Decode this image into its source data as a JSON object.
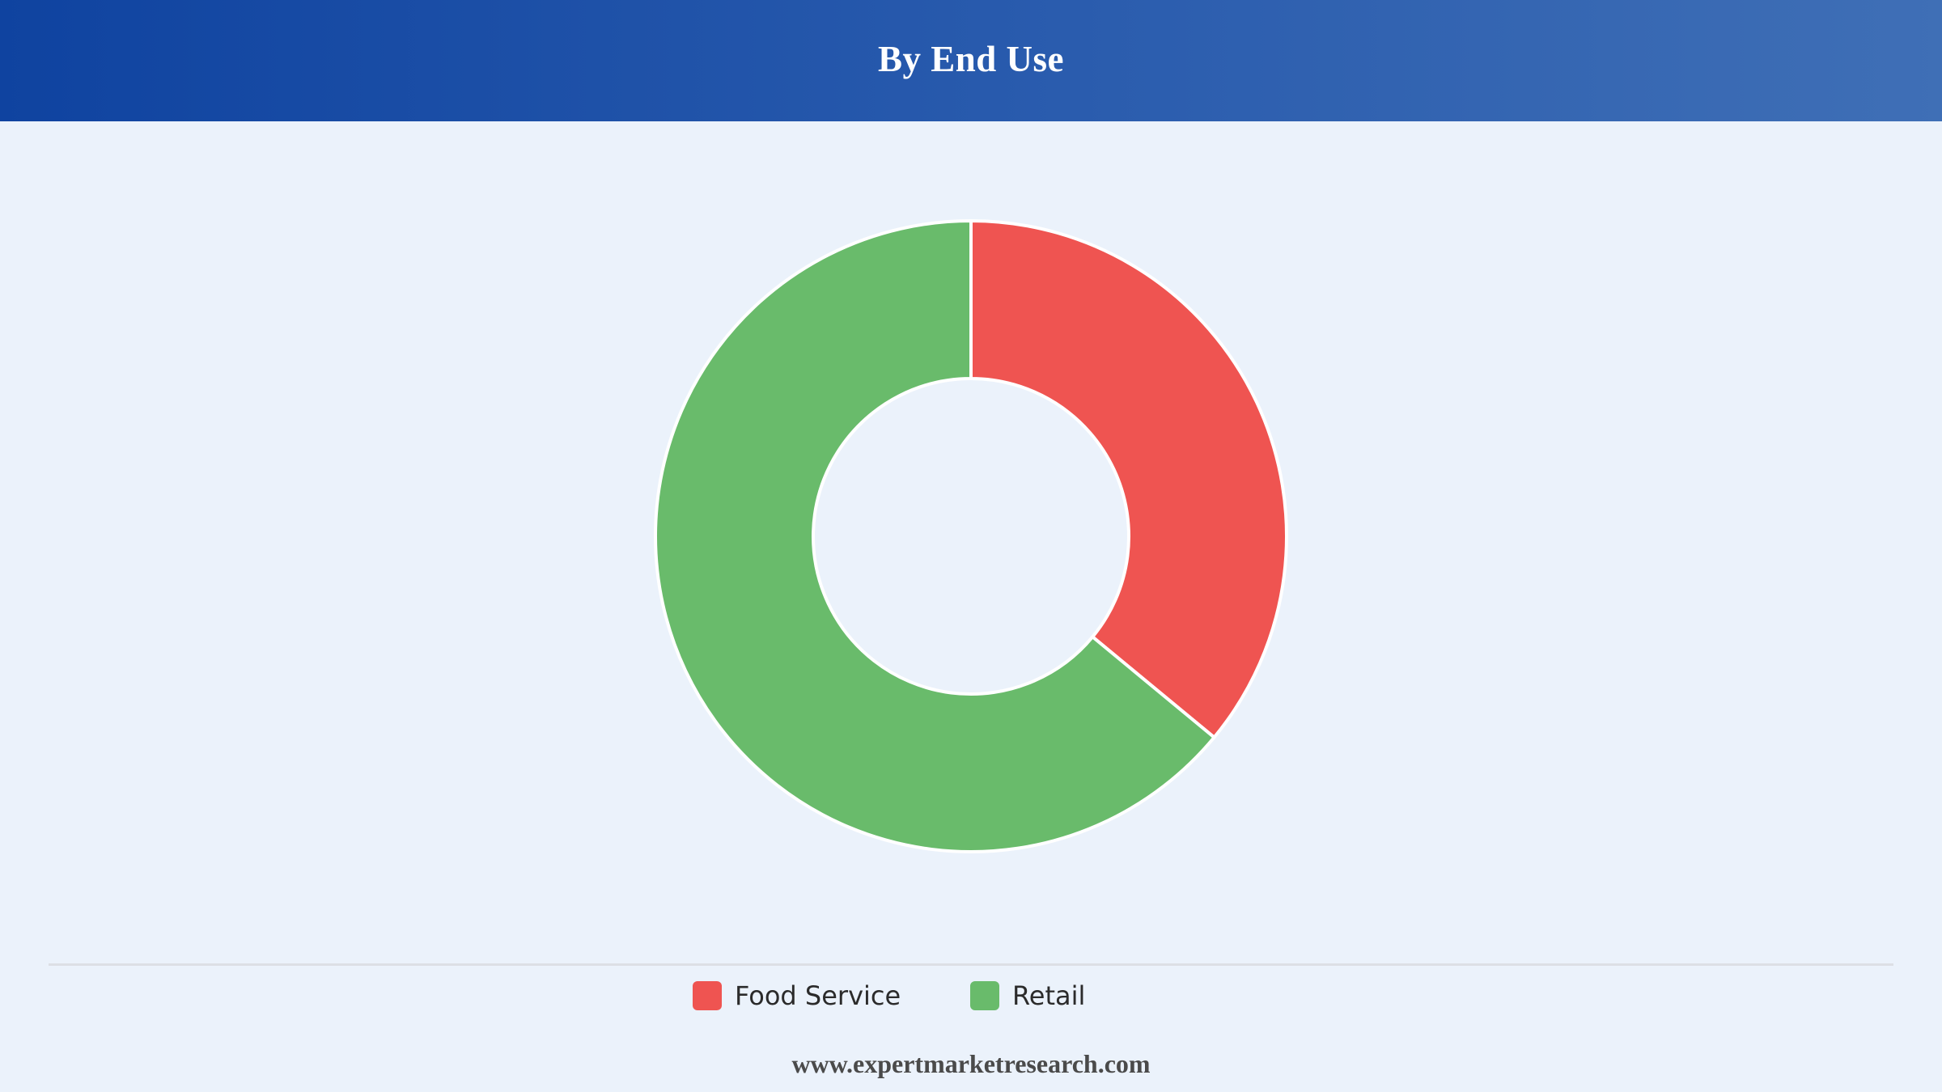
{
  "header": {
    "title": "By End Use"
  },
  "chart_data": {
    "type": "pie",
    "variant": "donut",
    "title": "By End Use",
    "categories": [
      "Food Service",
      "Retail"
    ],
    "values": [
      36,
      64
    ],
    "unit": "%",
    "colors": [
      "#ef5451",
      "#69bb6b"
    ],
    "legend_position": "bottom"
  },
  "legend": {
    "items": [
      {
        "label": "Food Service",
        "color": "#ef5451"
      },
      {
        "label": "Retail",
        "color": "#69bb6b"
      }
    ]
  },
  "footer": {
    "website": "www.expertmarketresearch.com"
  }
}
